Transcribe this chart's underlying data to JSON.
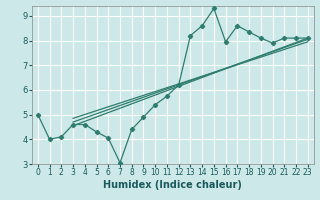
{
  "xlabel": "Humidex (Indice chaleur)",
  "background_color": "#cde8e8",
  "grid_color": "#ffffff",
  "line_color": "#2e7d6e",
  "xlim": [
    -0.5,
    23.5
  ],
  "ylim": [
    3,
    9.4
  ],
  "xticks": [
    0,
    1,
    2,
    3,
    4,
    5,
    6,
    7,
    8,
    9,
    10,
    11,
    12,
    13,
    14,
    15,
    16,
    17,
    18,
    19,
    20,
    21,
    22,
    23
  ],
  "yticks": [
    3,
    4,
    5,
    6,
    7,
    8,
    9
  ],
  "data_x": [
    0,
    1,
    2,
    3,
    4,
    5,
    6,
    7,
    8,
    9,
    10,
    11,
    12,
    13,
    14,
    15,
    16,
    17,
    18,
    19,
    20,
    21,
    22,
    23
  ],
  "data_y": [
    5.0,
    4.0,
    4.1,
    4.6,
    4.6,
    4.3,
    4.05,
    3.05,
    4.4,
    4.9,
    5.4,
    5.75,
    6.2,
    8.2,
    8.6,
    9.3,
    7.95,
    8.6,
    8.35,
    8.1,
    7.9,
    8.1,
    8.1,
    8.1
  ],
  "reg_lines": [
    {
      "x0": 3,
      "y0": 4.55,
      "x1": 23,
      "y1": 8.1
    },
    {
      "x0": 3,
      "y0": 4.7,
      "x1": 23,
      "y1": 8.05
    },
    {
      "x0": 3,
      "y0": 4.85,
      "x1": 23,
      "y1": 7.95
    }
  ],
  "xlabel_fontsize": 7,
  "ytick_fontsize": 6,
  "xtick_fontsize": 5.5
}
